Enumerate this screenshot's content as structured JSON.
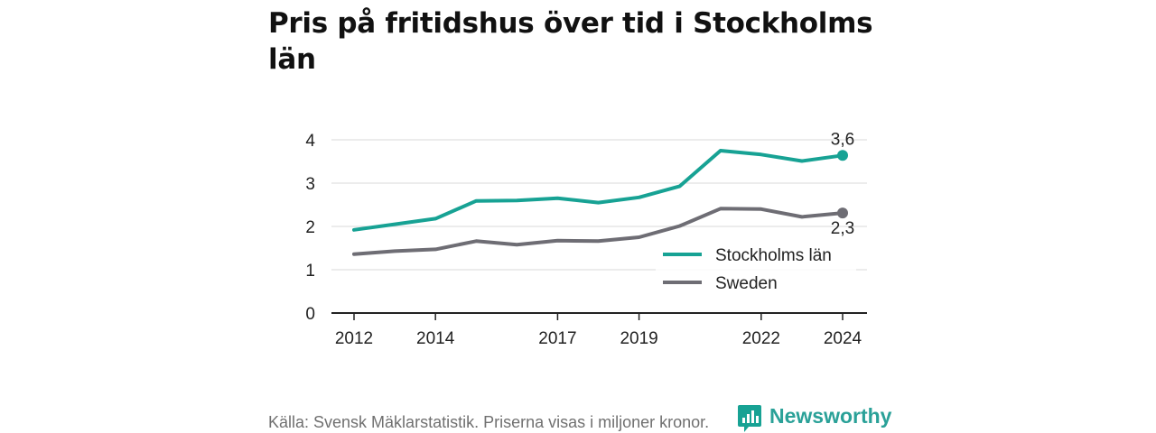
{
  "title": "Pris på fritidshus över tid i Stockholms län",
  "footer": "Källa: Svensk Mäklarstatistik. Priserna visas i miljoner kronor.",
  "brand": {
    "name": "Newsworthy",
    "icon": "newsworthy-logo-icon",
    "color": "#17a294"
  },
  "chart_data": {
    "type": "line",
    "x": [
      2012,
      2013,
      2014,
      2015,
      2016,
      2017,
      2018,
      2019,
      2020,
      2021,
      2022,
      2023,
      2024
    ],
    "x_ticks": [
      2012,
      2014,
      2017,
      2019,
      2022,
      2024
    ],
    "y_ticks": [
      0,
      1,
      2,
      3,
      4
    ],
    "ylim": [
      0,
      4.1
    ],
    "grid": true,
    "legend_position": "lower-right",
    "series": [
      {
        "name": "Stockholms län",
        "color": "#17a294",
        "values": [
          1.92,
          2.05,
          2.18,
          2.59,
          2.6,
          2.65,
          2.55,
          2.67,
          2.93,
          3.75,
          3.66,
          3.51,
          3.64
        ],
        "end_label": "3,6"
      },
      {
        "name": "Sweden",
        "color": "#6e6d74",
        "values": [
          1.36,
          1.43,
          1.47,
          1.66,
          1.58,
          1.67,
          1.66,
          1.75,
          2.01,
          2.41,
          2.4,
          2.22,
          2.31
        ],
        "end_label": "2,3"
      }
    ]
  }
}
